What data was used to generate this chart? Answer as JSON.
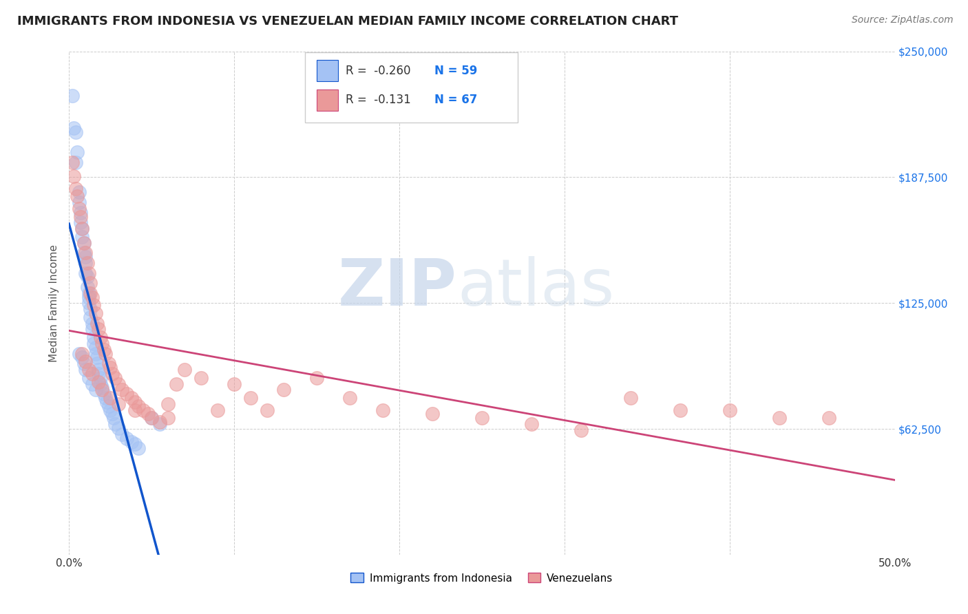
{
  "title": "IMMIGRANTS FROM INDONESIA VS VENEZUELAN MEDIAN FAMILY INCOME CORRELATION CHART",
  "source": "Source: ZipAtlas.com",
  "ylabel": "Median Family Income",
  "xlim": [
    0.0,
    0.5
  ],
  "ylim": [
    0,
    250000
  ],
  "yticks": [
    0,
    62500,
    125000,
    187500,
    250000
  ],
  "ytick_labels": [
    "",
    "$62,500",
    "$125,000",
    "$187,500",
    "$250,000"
  ],
  "xticks": [
    0.0,
    0.1,
    0.2,
    0.3,
    0.4,
    0.5
  ],
  "xtick_labels": [
    "0.0%",
    "",
    "",
    "",
    "",
    "50.0%"
  ],
  "legend_R1": "R =  -0.260",
  "legend_N1": "N = 59",
  "legend_R2": "R =  -0.131",
  "legend_N2": "N = 67",
  "color_indonesia": "#a4c2f4",
  "color_venezuela": "#ea9999",
  "color_trendline_indonesia": "#1155cc",
  "color_trendline_venezuela": "#cc4477",
  "color_dashed": "#aaaacc",
  "watermark_zip": "ZIP",
  "watermark_atlas": "atlas",
  "indonesia_x": [
    0.002,
    0.003,
    0.004,
    0.004,
    0.005,
    0.006,
    0.006,
    0.007,
    0.007,
    0.008,
    0.008,
    0.009,
    0.009,
    0.01,
    0.01,
    0.01,
    0.011,
    0.011,
    0.012,
    0.012,
    0.012,
    0.013,
    0.013,
    0.014,
    0.014,
    0.015,
    0.015,
    0.016,
    0.016,
    0.017,
    0.017,
    0.018,
    0.018,
    0.019,
    0.019,
    0.02,
    0.021,
    0.022,
    0.023,
    0.024,
    0.025,
    0.026,
    0.027,
    0.028,
    0.03,
    0.032,
    0.035,
    0.038,
    0.04,
    0.042,
    0.006,
    0.008,
    0.009,
    0.01,
    0.012,
    0.014,
    0.016,
    0.05,
    0.055
  ],
  "indonesia_y": [
    228000,
    212000,
    210000,
    195000,
    200000,
    175000,
    180000,
    170000,
    165000,
    162000,
    158000,
    155000,
    150000,
    148000,
    145000,
    140000,
    138000,
    133000,
    130000,
    128000,
    125000,
    122000,
    118000,
    115000,
    112000,
    108000,
    105000,
    103000,
    100000,
    98000,
    95000,
    92000,
    90000,
    88000,
    85000,
    83000,
    80000,
    78000,
    76000,
    74000,
    72000,
    70000,
    68000,
    65000,
    63000,
    60000,
    58000,
    56000,
    55000,
    53000,
    100000,
    98000,
    95000,
    92000,
    88000,
    85000,
    82000,
    68000,
    65000
  ],
  "venezuela_x": [
    0.002,
    0.003,
    0.004,
    0.005,
    0.006,
    0.007,
    0.008,
    0.009,
    0.01,
    0.011,
    0.012,
    0.013,
    0.013,
    0.014,
    0.015,
    0.016,
    0.017,
    0.018,
    0.019,
    0.02,
    0.021,
    0.022,
    0.024,
    0.025,
    0.026,
    0.028,
    0.03,
    0.032,
    0.035,
    0.038,
    0.04,
    0.042,
    0.045,
    0.048,
    0.05,
    0.055,
    0.06,
    0.065,
    0.07,
    0.08,
    0.09,
    0.1,
    0.11,
    0.12,
    0.13,
    0.15,
    0.17,
    0.19,
    0.22,
    0.25,
    0.28,
    0.31,
    0.34,
    0.37,
    0.4,
    0.43,
    0.46,
    0.008,
    0.01,
    0.012,
    0.014,
    0.018,
    0.02,
    0.025,
    0.03,
    0.04,
    0.06
  ],
  "venezuela_y": [
    195000,
    188000,
    182000,
    178000,
    172000,
    168000,
    162000,
    155000,
    150000,
    145000,
    140000,
    135000,
    130000,
    128000,
    124000,
    120000,
    115000,
    112000,
    108000,
    105000,
    102000,
    100000,
    95000,
    93000,
    90000,
    88000,
    85000,
    82000,
    80000,
    78000,
    76000,
    74000,
    72000,
    70000,
    68000,
    66000,
    75000,
    85000,
    92000,
    88000,
    72000,
    85000,
    78000,
    72000,
    82000,
    88000,
    78000,
    72000,
    70000,
    68000,
    65000,
    62000,
    78000,
    72000,
    72000,
    68000,
    68000,
    100000,
    96000,
    92000,
    90000,
    86000,
    82000,
    78000,
    75000,
    72000,
    68000
  ]
}
